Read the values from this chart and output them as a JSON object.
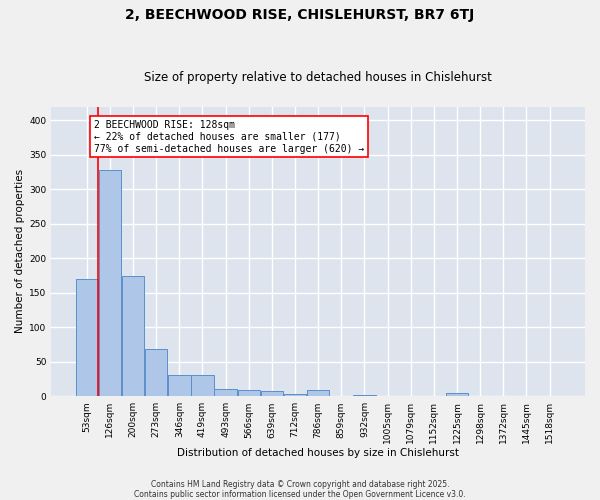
{
  "title1": "2, BEECHWOOD RISE, CHISLEHURST, BR7 6TJ",
  "title2": "Size of property relative to detached houses in Chislehurst",
  "xlabel": "Distribution of detached houses by size in Chislehurst",
  "ylabel": "Number of detached properties",
  "categories": [
    "53sqm",
    "126sqm",
    "200sqm",
    "273sqm",
    "346sqm",
    "419sqm",
    "493sqm",
    "566sqm",
    "639sqm",
    "712sqm",
    "786sqm",
    "859sqm",
    "932sqm",
    "1005sqm",
    "1079sqm",
    "1152sqm",
    "1225sqm",
    "1298sqm",
    "1372sqm",
    "1445sqm",
    "1518sqm"
  ],
  "values": [
    170,
    328,
    174,
    68,
    31,
    31,
    10,
    9,
    8,
    4,
    9,
    0,
    2,
    0,
    0,
    0,
    5,
    0,
    0,
    0,
    0
  ],
  "bar_color": "#aec6e8",
  "bar_edge_color": "#5b8fc9",
  "plot_bg_color": "#dde4ee",
  "grid_color": "#ffffff",
  "fig_bg_color": "#f0f0f0",
  "annotation_line1": "2 BEECHWOOD RISE: 128sqm",
  "annotation_line2": "← 22% of detached houses are smaller (177)",
  "annotation_line3": "77% of semi-detached houses are larger (620) →",
  "red_line_bin": 1,
  "ylim_max": 420,
  "yticks": [
    0,
    50,
    100,
    150,
    200,
    250,
    300,
    350,
    400
  ],
  "footer_line1": "Contains HM Land Registry data © Crown copyright and database right 2025.",
  "footer_line2": "Contains public sector information licensed under the Open Government Licence v3.0.",
  "title_fontsize": 10,
  "subtitle_fontsize": 8.5,
  "axis_label_fontsize": 7.5,
  "tick_fontsize": 6.5,
  "annotation_fontsize": 7.0,
  "footer_fontsize": 5.5
}
